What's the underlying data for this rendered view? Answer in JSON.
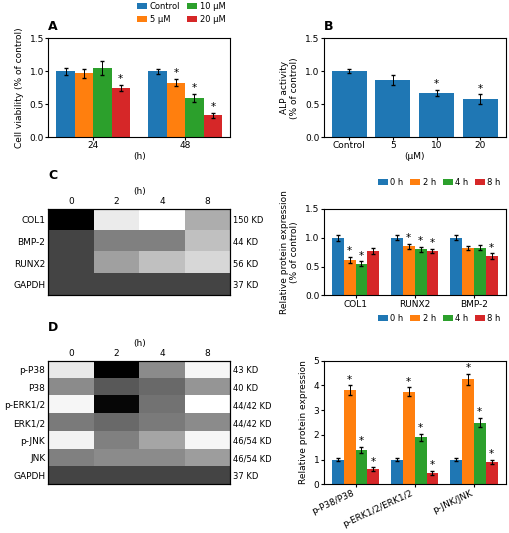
{
  "chart_data": [
    {
      "type": "bar",
      "title": "A",
      "categories": [
        "24",
        "48"
      ],
      "xlabel": "(h)",
      "ylabel": "Cell viability (% of control)",
      "ylim": [
        0,
        1.5
      ],
      "yticks": [
        {
          "value": 0,
          "label": "0.0"
        },
        {
          "value": 0.5,
          "label": "0.5"
        },
        {
          "value": 1,
          "label": "1.0"
        },
        {
          "value": 1.5,
          "label": "1.5"
        }
      ],
      "legend": "upper right",
      "series": [
        {
          "name": "Control",
          "values": [
            1.0,
            1.0
          ],
          "errors": [
            0.05,
            0.04
          ],
          "annotations": [
            null,
            null
          ]
        },
        {
          "name": "5 μM",
          "values": [
            0.97,
            0.83
          ],
          "errors": [
            0.07,
            0.06
          ],
          "annotations": [
            null,
            "*"
          ]
        },
        {
          "name": "10 μM",
          "values": [
            1.05,
            0.6
          ],
          "errors": [
            0.1,
            0.06
          ],
          "annotations": [
            null,
            "*"
          ]
        },
        {
          "name": "20 μM",
          "values": [
            0.75,
            0.33
          ],
          "errors": [
            0.05,
            0.04
          ],
          "annotations": [
            "*",
            "*"
          ]
        }
      ]
    },
    {
      "type": "bar",
      "title": "B",
      "categories": [
        "Control",
        "5",
        "10",
        "20"
      ],
      "xlabel": "(μM)",
      "ylabel": "ALP activity\n(% of control)",
      "ylim": [
        0,
        1.5
      ],
      "yticks": [
        {
          "value": 0,
          "label": "0.0"
        },
        {
          "value": 0.5,
          "label": "0.5"
        },
        {
          "value": 1,
          "label": "1.0"
        },
        {
          "value": 1.5,
          "label": "1.5"
        }
      ],
      "values": [
        1.0,
        0.87,
        0.67,
        0.58
      ],
      "errors": [
        0.03,
        0.07,
        0.05,
        0.07
      ],
      "annotations": [
        null,
        null,
        "*",
        "*"
      ]
    },
    {
      "type": "heatmap",
      "title": "C",
      "xlabel": "(h)",
      "categories": [
        "0",
        "2",
        "4",
        "8"
      ],
      "rows": [
        "COL1",
        "BMP-2",
        "RUNX2",
        "GAPDH"
      ],
      "row_labels_right": [
        "150 KD",
        "44 KD",
        "56 KD",
        "37 KD"
      ],
      "cells": [
        [
          0.85,
          0.45,
          0.38,
          0.58
        ],
        [
          0.75,
          0.65,
          0.65,
          0.55
        ],
        [
          0.75,
          0.6,
          0.55,
          0.5
        ],
        [
          0.75,
          0.75,
          0.75,
          0.75
        ]
      ]
    },
    {
      "type": "bar",
      "categories": [
        "COL1",
        "RUNX2",
        "BMP-2"
      ],
      "ylabel": "Relative protein expression\n(% of control)",
      "ylim": [
        0,
        1.5
      ],
      "yticks": [
        {
          "value": 0,
          "label": "0.0"
        },
        {
          "value": 0.5,
          "label": "0.5"
        },
        {
          "value": 1,
          "label": "1.0"
        },
        {
          "value": 1.5,
          "label": "1.5"
        }
      ],
      "legend": "upper right",
      "series": [
        {
          "name": "0 h",
          "values": [
            1.0,
            1.0,
            1.0
          ],
          "errors": [
            0.05,
            0.04,
            0.04
          ],
          "annotations": [
            null,
            null,
            null
          ]
        },
        {
          "name": "2 h",
          "values": [
            0.62,
            0.85,
            0.82
          ],
          "errors": [
            0.05,
            0.04,
            0.04
          ],
          "annotations": [
            "*",
            "*",
            null
          ]
        },
        {
          "name": "4 h",
          "values": [
            0.55,
            0.8,
            0.83
          ],
          "errors": [
            0.04,
            0.04,
            0.04
          ],
          "annotations": [
            "*",
            "*",
            null
          ]
        },
        {
          "name": "8 h",
          "values": [
            0.77,
            0.77,
            0.68
          ],
          "errors": [
            0.05,
            0.04,
            0.05
          ],
          "annotations": [
            null,
            "*",
            "*"
          ]
        }
      ]
    },
    {
      "type": "heatmap",
      "title": "D",
      "xlabel": "(h)",
      "categories": [
        "0",
        "2",
        "4",
        "8"
      ],
      "rows": [
        "p-P38",
        "P38",
        "p-ERK1/2",
        "ERK1/2",
        "p-JNK",
        "JNK",
        "GAPDH"
      ],
      "row_labels_right": [
        "43 KD",
        "40 KD",
        "44/42 KD",
        "44/42 KD",
        "46/54 KD",
        "46/54 KD",
        "37 KD"
      ],
      "cells": [
        [
          0.25,
          0.92,
          0.55,
          0.18
        ],
        [
          0.55,
          0.7,
          0.65,
          0.52
        ],
        [
          0.18,
          0.9,
          0.62,
          0.12
        ],
        [
          0.6,
          0.65,
          0.6,
          0.55
        ],
        [
          0.2,
          0.58,
          0.48,
          0.18
        ],
        [
          0.58,
          0.55,
          0.55,
          0.5
        ],
        [
          0.75,
          0.75,
          0.75,
          0.75
        ]
      ]
    },
    {
      "type": "bar",
      "categories": [
        "p-P38/P38",
        "p-ERK1/2/ERK1/2",
        "p-JNK/JNK"
      ],
      "ylabel": "Relative protein expression",
      "ylim": [
        0,
        5
      ],
      "yticks": [
        0,
        1,
        2,
        3,
        4,
        5
      ],
      "legend": "upper right",
      "series": [
        {
          "name": "0 h",
          "values": [
            1.0,
            1.0,
            1.0
          ],
          "errors": [
            0.05,
            0.05,
            0.05
          ],
          "annotations": [
            null,
            null,
            null
          ]
        },
        {
          "name": "2 h",
          "values": [
            3.8,
            3.75,
            4.25
          ],
          "errors": [
            0.2,
            0.18,
            0.22
          ],
          "annotations": [
            "*",
            "*",
            "*"
          ]
        },
        {
          "name": "4 h",
          "values": [
            1.4,
            1.9,
            2.5
          ],
          "errors": [
            0.12,
            0.15,
            0.18
          ],
          "annotations": [
            "*",
            "*",
            "*"
          ]
        },
        {
          "name": "8 h",
          "values": [
            0.6,
            0.45,
            0.9
          ],
          "errors": [
            0.08,
            0.08,
            0.08
          ],
          "annotations": [
            "*",
            "*",
            "*"
          ]
        }
      ]
    }
  ]
}
